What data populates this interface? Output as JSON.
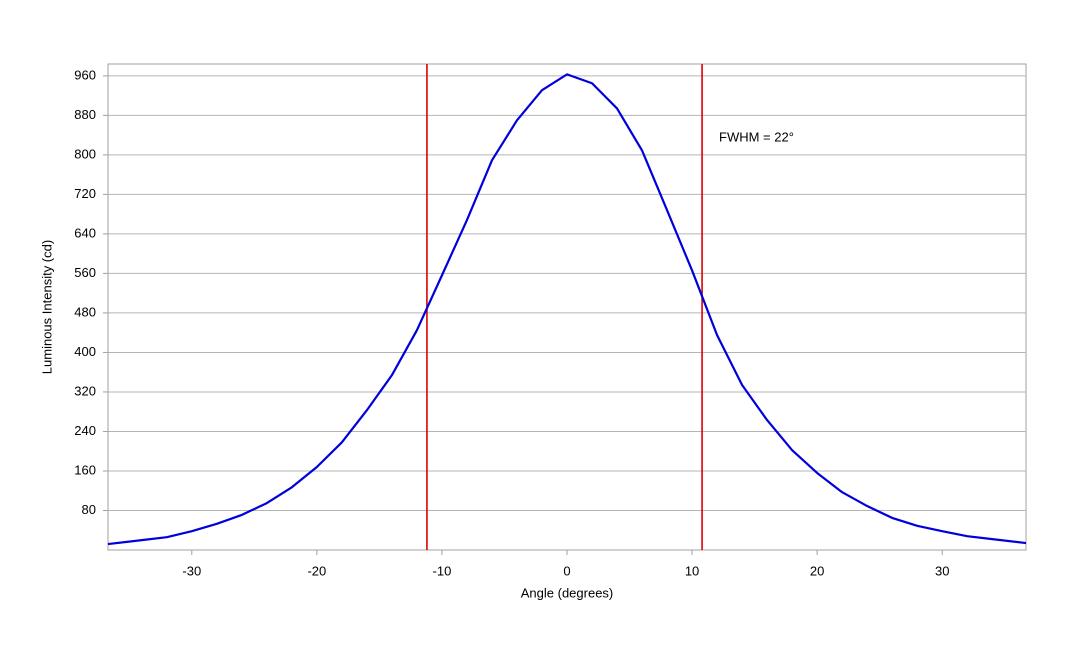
{
  "chart_data": {
    "type": "line",
    "x_label": "Angle (degrees)",
    "y_label": "Luminous Intensity (cd)",
    "annotation": "FWHM = 22°",
    "series": [
      {
        "color": "#0000dd",
        "x": [
          -36.7,
          -34,
          -32,
          -30,
          -28,
          -26,
          -24,
          -22,
          -20,
          -18,
          -16,
          -14,
          -12,
          -10,
          -8,
          -6,
          -4,
          -2,
          0,
          2,
          4,
          6,
          8,
          10,
          12,
          14,
          16,
          18,
          20,
          22,
          24,
          26,
          28,
          30,
          32,
          34,
          36.7
        ],
        "values": [
          12,
          20,
          26,
          38,
          53,
          71,
          95,
          127,
          168,
          218,
          283,
          354,
          445,
          556,
          668,
          789,
          870,
          931,
          963,
          945,
          894,
          809,
          688,
          566,
          435,
          334,
          263,
          202,
          156,
          117,
          89,
          65,
          49,
          38,
          28,
          22,
          14
        ]
      }
    ],
    "vlines": [
      -11.2,
      10.8
    ],
    "vline_color": "#dd0000",
    "xlim": [
      -36.7,
      36.7
    ],
    "xticks": [
      -30,
      -20,
      -10,
      0,
      10,
      20,
      30
    ],
    "ylim": [
      0,
      984
    ],
    "yticks": [
      80,
      160,
      240,
      320,
      400,
      480,
      560,
      640,
      720,
      800,
      880,
      960
    ],
    "grid": true
  }
}
